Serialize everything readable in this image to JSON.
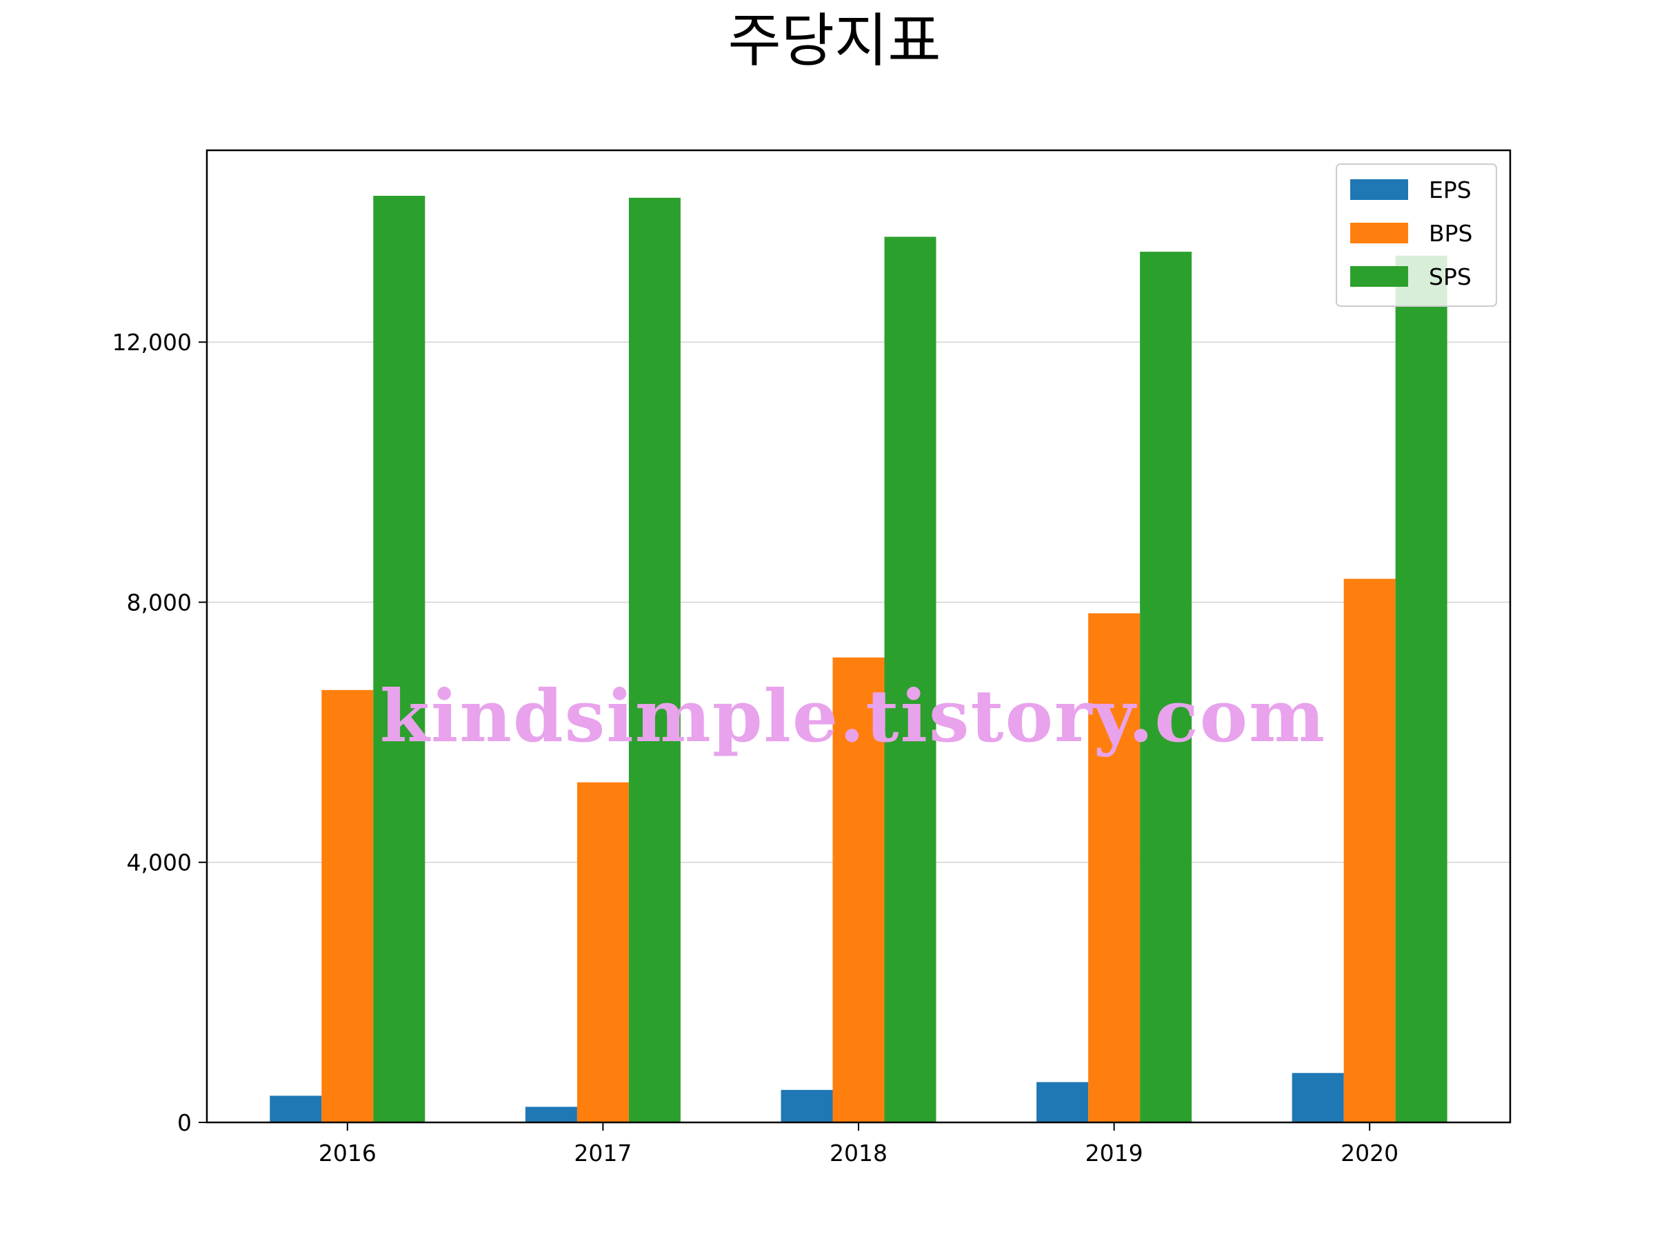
{
  "chart_data": {
    "type": "bar",
    "title": "주당지표",
    "categories": [
      "2016",
      "2017",
      "2018",
      "2019",
      "2020"
    ],
    "series": [
      {
        "name": "EPS",
        "color": "#1f77b4",
        "values": [
          410,
          240,
          500,
          620,
          760
        ]
      },
      {
        "name": "BPS",
        "color": "#ff7f0e",
        "values": [
          6650,
          5230,
          7150,
          7830,
          8360
        ]
      },
      {
        "name": "SPS",
        "color": "#2ca02c",
        "values": [
          14250,
          14220,
          13620,
          13390,
          13330
        ]
      }
    ],
    "xlabel": "",
    "ylabel": "",
    "ylim": [
      0,
      14950
    ],
    "yticks": [
      0,
      4000,
      8000,
      12000
    ],
    "ytick_labels": [
      "0",
      "4,000",
      "8,000",
      "12,000"
    ],
    "grid": "horizontal",
    "legend_position": "top-right",
    "watermark": "kindsimple.tistory.com"
  }
}
